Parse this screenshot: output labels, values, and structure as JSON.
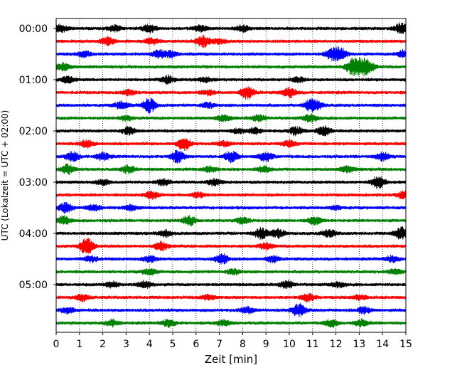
{
  "chart_data": {
    "type": "line",
    "subtype": "helicorder seismogram",
    "xlabel": "Zeit  [min]",
    "ylabel": "UTC (Lokalzeit = UTC + 02:00)",
    "xlim": [
      0,
      15
    ],
    "x_ticks": [
      0,
      1,
      2,
      3,
      4,
      5,
      6,
      7,
      8,
      9,
      10,
      11,
      12,
      13,
      14,
      15
    ],
    "x_grid": "dotted vertical lines at each minute",
    "y_tick_labels": [
      "00:00",
      "01:00",
      "02:00",
      "03:00",
      "04:00",
      "05:00"
    ],
    "trace_count": 24,
    "traces_per_hour": 4,
    "trace_color_cycle": [
      "#000000",
      "#ff0000",
      "#0000ff",
      "#008000"
    ],
    "bursts": [
      {
        "trace": 0,
        "x": 0.2,
        "amp": 0.6
      },
      {
        "trace": 0,
        "x": 2.5,
        "amp": 0.5
      },
      {
        "trace": 0,
        "x": 4.0,
        "amp": 0.6
      },
      {
        "trace": 0,
        "x": 6.2,
        "amp": 0.5
      },
      {
        "trace": 0,
        "x": 8.0,
        "amp": 0.5
      },
      {
        "trace": 0,
        "x": 14.8,
        "amp": 0.8
      },
      {
        "trace": 1,
        "x": 2.2,
        "amp": 0.6
      },
      {
        "trace": 1,
        "x": 4.1,
        "amp": 0.5
      },
      {
        "trace": 1,
        "x": 6.3,
        "amp": 0.9
      },
      {
        "trace": 1,
        "x": 7.0,
        "amp": 0.4
      },
      {
        "trace": 2,
        "x": 1.2,
        "amp": 0.5
      },
      {
        "trace": 2,
        "x": 4.4,
        "amp": 0.6
      },
      {
        "trace": 2,
        "x": 4.9,
        "amp": 0.5
      },
      {
        "trace": 2,
        "x": 11.8,
        "amp": 0.8
      },
      {
        "trace": 2,
        "x": 12.2,
        "amp": 1.0
      },
      {
        "trace": 2,
        "x": 14.9,
        "amp": 0.6
      },
      {
        "trace": 3,
        "x": 0.3,
        "amp": 0.6
      },
      {
        "trace": 3,
        "x": 12.7,
        "amp": 1.2
      },
      {
        "trace": 3,
        "x": 13.1,
        "amp": 1.0
      },
      {
        "trace": 3,
        "x": 13.4,
        "amp": 0.8
      },
      {
        "trace": 4,
        "x": 0.5,
        "amp": 0.5
      },
      {
        "trace": 4,
        "x": 4.8,
        "amp": 0.6
      },
      {
        "trace": 4,
        "x": 6.4,
        "amp": 0.4
      },
      {
        "trace": 4,
        "x": 10.4,
        "amp": 0.4
      },
      {
        "trace": 5,
        "x": 3.1,
        "amp": 0.4
      },
      {
        "trace": 5,
        "x": 6.5,
        "amp": 0.4
      },
      {
        "trace": 5,
        "x": 8.2,
        "amp": 1.0
      },
      {
        "trace": 5,
        "x": 10.0,
        "amp": 0.8
      },
      {
        "trace": 6,
        "x": 2.8,
        "amp": 0.6
      },
      {
        "trace": 6,
        "x": 4.0,
        "amp": 1.2
      },
      {
        "trace": 6,
        "x": 6.5,
        "amp": 0.4
      },
      {
        "trace": 6,
        "x": 10.9,
        "amp": 0.8
      },
      {
        "trace": 6,
        "x": 11.2,
        "amp": 0.5
      },
      {
        "trace": 7,
        "x": 3.0,
        "amp": 0.4
      },
      {
        "trace": 7,
        "x": 7.2,
        "amp": 0.5
      },
      {
        "trace": 7,
        "x": 8.7,
        "amp": 0.5
      },
      {
        "trace": 7,
        "x": 10.9,
        "amp": 0.6
      },
      {
        "trace": 8,
        "x": 3.1,
        "amp": 0.6
      },
      {
        "trace": 8,
        "x": 7.8,
        "amp": 0.4
      },
      {
        "trace": 8,
        "x": 8.5,
        "amp": 0.5
      },
      {
        "trace": 8,
        "x": 10.3,
        "amp": 0.7
      },
      {
        "trace": 8,
        "x": 11.5,
        "amp": 0.8
      },
      {
        "trace": 9,
        "x": 1.3,
        "amp": 0.6
      },
      {
        "trace": 9,
        "x": 5.5,
        "amp": 1.0
      },
      {
        "trace": 9,
        "x": 7.2,
        "amp": 0.4
      },
      {
        "trace": 9,
        "x": 10.0,
        "amp": 0.5
      },
      {
        "trace": 10,
        "x": 0.7,
        "amp": 0.8
      },
      {
        "trace": 10,
        "x": 2.0,
        "amp": 0.6
      },
      {
        "trace": 10,
        "x": 5.2,
        "amp": 1.0
      },
      {
        "trace": 10,
        "x": 7.5,
        "amp": 0.9
      },
      {
        "trace": 10,
        "x": 9.0,
        "amp": 0.8
      },
      {
        "trace": 10,
        "x": 14.0,
        "amp": 0.7
      },
      {
        "trace": 11,
        "x": 0.5,
        "amp": 0.8
      },
      {
        "trace": 11,
        "x": 3.1,
        "amp": 0.6
      },
      {
        "trace": 11,
        "x": 6.6,
        "amp": 0.5
      },
      {
        "trace": 11,
        "x": 8.9,
        "amp": 0.5
      },
      {
        "trace": 11,
        "x": 12.5,
        "amp": 0.5
      },
      {
        "trace": 12,
        "x": 2.0,
        "amp": 0.4
      },
      {
        "trace": 12,
        "x": 4.6,
        "amp": 0.5
      },
      {
        "trace": 12,
        "x": 6.8,
        "amp": 0.5
      },
      {
        "trace": 12,
        "x": 13.8,
        "amp": 1.0
      },
      {
        "trace": 13,
        "x": 4.1,
        "amp": 0.6
      },
      {
        "trace": 13,
        "x": 6.1,
        "amp": 0.4
      },
      {
        "trace": 13,
        "x": 14.9,
        "amp": 0.6
      },
      {
        "trace": 14,
        "x": 0.4,
        "amp": 0.8
      },
      {
        "trace": 14,
        "x": 1.6,
        "amp": 0.5
      },
      {
        "trace": 14,
        "x": 3.2,
        "amp": 0.5
      },
      {
        "trace": 14,
        "x": 12.0,
        "amp": 0.3
      },
      {
        "trace": 15,
        "x": 0.3,
        "amp": 0.7
      },
      {
        "trace": 15,
        "x": 5.7,
        "amp": 0.8
      },
      {
        "trace": 15,
        "x": 8.0,
        "amp": 0.5
      },
      {
        "trace": 15,
        "x": 11.1,
        "amp": 0.6
      },
      {
        "trace": 16,
        "x": 4.7,
        "amp": 0.5
      },
      {
        "trace": 16,
        "x": 8.8,
        "amp": 0.9
      },
      {
        "trace": 16,
        "x": 9.5,
        "amp": 0.7
      },
      {
        "trace": 16,
        "x": 11.7,
        "amp": 0.6
      },
      {
        "trace": 16,
        "x": 14.8,
        "amp": 1.0
      },
      {
        "trace": 17,
        "x": 1.3,
        "amp": 1.4
      },
      {
        "trace": 17,
        "x": 4.5,
        "amp": 0.7
      },
      {
        "trace": 17,
        "x": 9.0,
        "amp": 0.5
      },
      {
        "trace": 18,
        "x": 1.5,
        "amp": 0.5
      },
      {
        "trace": 18,
        "x": 4.0,
        "amp": 0.5
      },
      {
        "trace": 18,
        "x": 7.1,
        "amp": 0.8
      },
      {
        "trace": 18,
        "x": 9.3,
        "amp": 0.5
      },
      {
        "trace": 18,
        "x": 14.4,
        "amp": 0.5
      },
      {
        "trace": 19,
        "x": 4.0,
        "amp": 0.5
      },
      {
        "trace": 19,
        "x": 7.6,
        "amp": 0.4
      },
      {
        "trace": 19,
        "x": 14.5,
        "amp": 0.4
      },
      {
        "trace": 20,
        "x": 2.4,
        "amp": 0.5
      },
      {
        "trace": 20,
        "x": 3.8,
        "amp": 0.6
      },
      {
        "trace": 20,
        "x": 9.9,
        "amp": 0.6
      },
      {
        "trace": 20,
        "x": 12.1,
        "amp": 0.4
      },
      {
        "trace": 21,
        "x": 1.1,
        "amp": 0.5
      },
      {
        "trace": 21,
        "x": 6.5,
        "amp": 0.4
      },
      {
        "trace": 21,
        "x": 10.8,
        "amp": 0.6
      },
      {
        "trace": 21,
        "x": 13.0,
        "amp": 0.4
      },
      {
        "trace": 22,
        "x": 0.5,
        "amp": 0.5
      },
      {
        "trace": 22,
        "x": 8.2,
        "amp": 0.5
      },
      {
        "trace": 22,
        "x": 10.4,
        "amp": 1.1
      },
      {
        "trace": 22,
        "x": 13.2,
        "amp": 0.5
      },
      {
        "trace": 23,
        "x": 2.4,
        "amp": 0.5
      },
      {
        "trace": 23,
        "x": 4.8,
        "amp": 0.6
      },
      {
        "trace": 23,
        "x": 7.2,
        "amp": 0.5
      },
      {
        "trace": 23,
        "x": 11.8,
        "amp": 0.6
      },
      {
        "trace": 23,
        "x": 13.1,
        "amp": 0.5
      }
    ]
  }
}
